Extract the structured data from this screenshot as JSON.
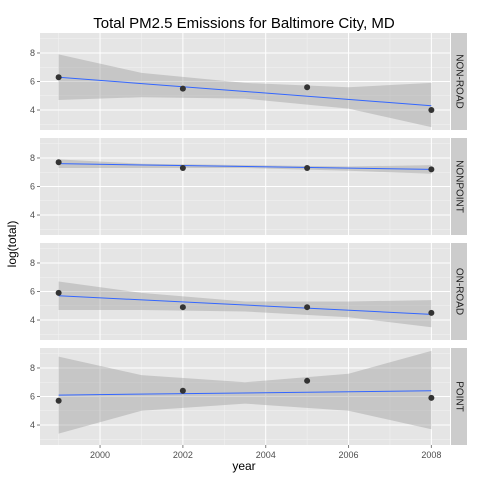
{
  "chart_data": {
    "type": "scatter",
    "title": "Total PM2.5 Emissions for Baltimore City, MD",
    "xlabel": "year",
    "ylabel": "log(total)",
    "xlim": [
      1998.55,
      2008.45
    ],
    "ylim": [
      2.6,
      9.4
    ],
    "x_ticks": [
      2000,
      2002,
      2004,
      2006,
      2008
    ],
    "y_ticks": [
      4,
      6,
      8
    ],
    "grid": true,
    "facet_position": "right",
    "colors": {
      "panel_bg": "#e5e5e5",
      "grid_major": "#ffffff",
      "grid_minor": "#f2f2f2",
      "strip_bg": "#cccccc",
      "point": "#333333",
      "fit_line": "#3366ff",
      "ribbon": "#999999"
    },
    "facets": [
      {
        "label": "NON-ROAD",
        "x": [
          1999,
          2002,
          2005,
          2008
        ],
        "y": [
          6.3,
          5.5,
          5.6,
          4.0
        ],
        "fit": {
          "y_start": 6.3,
          "y_end": 4.3
        },
        "band": {
          "x": [
            1999,
            2001,
            2003.5,
            2006,
            2008
          ],
          "lower": [
            4.7,
            4.9,
            4.8,
            4.1,
            2.8
          ],
          "upper": [
            7.9,
            6.6,
            5.9,
            5.6,
            5.9
          ]
        }
      },
      {
        "label": "NONPOINT",
        "x": [
          1999,
          2002,
          2005,
          2008
        ],
        "y": [
          7.7,
          7.3,
          7.3,
          7.2
        ],
        "fit": {
          "y_start": 7.6,
          "y_end": 7.2
        },
        "band": {
          "x": [
            1999,
            2001,
            2003.5,
            2006,
            2008
          ],
          "lower": [
            7.3,
            7.3,
            7.3,
            7.1,
            6.9
          ],
          "upper": [
            7.9,
            7.6,
            7.5,
            7.4,
            7.5
          ]
        }
      },
      {
        "label": "ON-ROAD",
        "x": [
          1999,
          2002,
          2005,
          2008
        ],
        "y": [
          5.9,
          4.9,
          4.9,
          4.5
        ],
        "fit": {
          "y_start": 5.7,
          "y_end": 4.4
        },
        "band": {
          "x": [
            1999,
            2001,
            2003.5,
            2006,
            2008
          ],
          "lower": [
            4.7,
            4.7,
            4.6,
            4.2,
            3.5
          ],
          "upper": [
            6.7,
            5.9,
            5.3,
            5.3,
            5.4
          ]
        }
      },
      {
        "label": "POINT",
        "x": [
          1999,
          2002,
          2005,
          2008
        ],
        "y": [
          5.7,
          6.4,
          7.1,
          5.9
        ],
        "fit": {
          "y_start": 6.1,
          "y_end": 6.4
        },
        "band": {
          "x": [
            1999,
            2001,
            2003.5,
            2006,
            2008
          ],
          "lower": [
            3.4,
            5.0,
            5.5,
            5.0,
            3.7
          ],
          "upper": [
            8.8,
            7.5,
            7.0,
            7.6,
            9.2
          ]
        }
      }
    ]
  }
}
